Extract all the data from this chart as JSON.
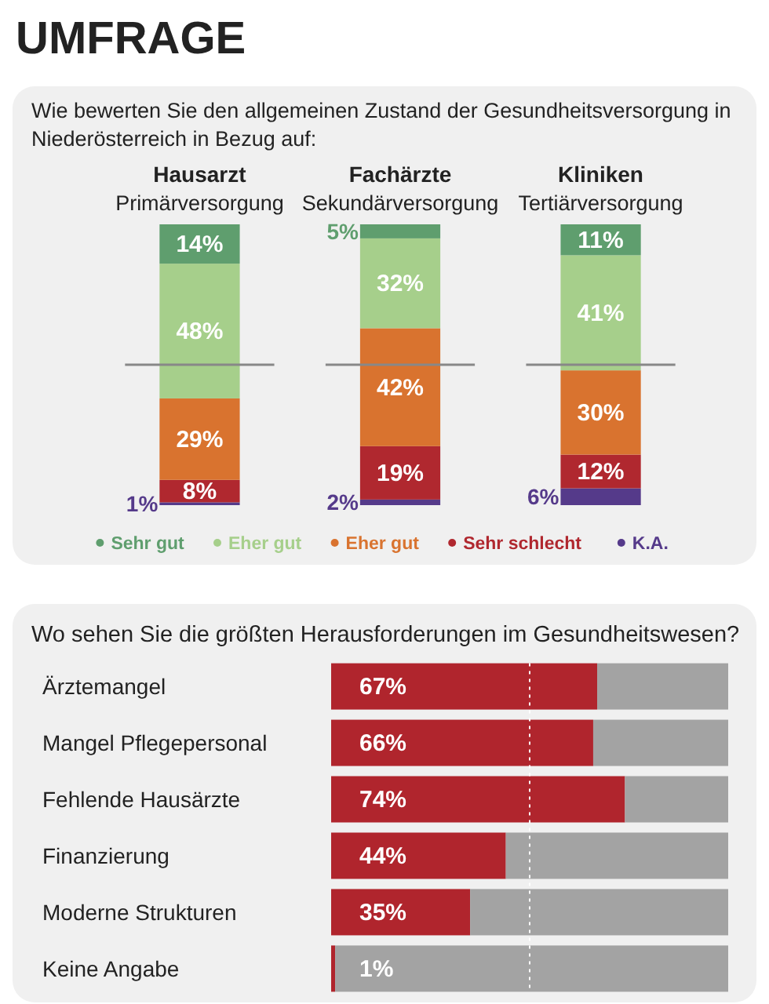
{
  "chart_data": [
    {
      "type": "bar",
      "title": "UMFRAGE",
      "subtitle": "Wie bewerten Sie den allgemeinen Zustand der Gesundheitsversorgung in Niederösterreich in Bezug auf:",
      "categories": [
        "Hausarzt\nPrimärversorgung",
        "Fachärzte\nSekundärversorgung",
        "Kliniken\nTertiärversorgung"
      ],
      "stacked": true,
      "ylim": [
        0,
        100
      ],
      "legend": "bottom",
      "ref_lines": [
        {
          "axis": "y",
          "value": 50,
          "color": "#888888"
        }
      ],
      "series": [
        {
          "name": "K.A.",
          "color": "#553a8a",
          "values": [
            1,
            2,
            6
          ],
          "value_labels": [
            "1%",
            "2%",
            "6%"
          ]
        },
        {
          "name": "Sehr schlecht",
          "color": "#b0282f",
          "values": [
            8,
            19,
            12
          ],
          "value_labels": [
            "8%",
            "19%",
            "12%"
          ]
        },
        {
          "name": "Eher gut",
          "color": "#d9732f",
          "values": [
            29,
            42,
            30
          ],
          "value_labels": [
            "29%",
            "42%",
            "30%"
          ]
        },
        {
          "name": "Eher gut",
          "color": "#a6cf8b",
          "values": [
            48,
            32,
            41
          ],
          "value_labels": [
            "48%",
            "32%",
            "41%"
          ]
        },
        {
          "name": "Sehr gut",
          "color": "#5f9e6e",
          "values": [
            14,
            5,
            11
          ],
          "value_labels": [
            "14%",
            "5%",
            "11%"
          ]
        }
      ]
    },
    {
      "type": "bar",
      "orientation": "horizontal",
      "stacked": true,
      "title": "Wo sehen Sie die größten Herausforderungen im Gesundheitswesen?",
      "categories": [
        "Ärztemangel",
        "Mangel Pflegepersonal",
        "Fehlende Hausärzte",
        "Finanzierung",
        "Moderne Strukturen",
        "Keine Angabe"
      ],
      "xlim": [
        0,
        100
      ],
      "legend": false,
      "ref_lines": [
        {
          "axis": "x",
          "value": 50,
          "color": "#ffffff",
          "line_style": "dotted"
        }
      ],
      "series": [
        {
          "color": "#b0252d",
          "values": [
            67,
            66,
            74,
            44,
            35,
            1
          ],
          "value_labels": [
            "67%",
            "66%",
            "74%",
            "44%",
            "35%",
            "1%"
          ]
        },
        {
          "color": "#a3a3a3",
          "values": [
            33,
            34,
            26,
            56,
            65,
            99
          ]
        }
      ]
    }
  ]
}
